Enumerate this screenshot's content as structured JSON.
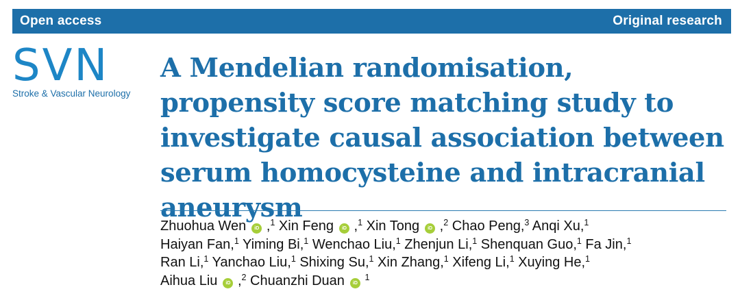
{
  "header": {
    "left_label": "Open access",
    "right_label": "Original research"
  },
  "journal": {
    "logo_text": "SVN",
    "name": "Stroke & Vascular Neurology"
  },
  "article": {
    "title": "A Mendelian randomisation, propensity score matching study to investigate causal association between serum homocysteine and intracranial aneurysm"
  },
  "orcid_icon_text": "iD",
  "author_lines": [
    [
      {
        "name": "Zhuohua Wen",
        "orcid": true,
        "aff": "1",
        "sep": ", "
      },
      {
        "name": "Xin Feng",
        "orcid": true,
        "aff": "1",
        "sep": ", "
      },
      {
        "name": "Xin Tong",
        "orcid": true,
        "aff": "2",
        "sep": ", "
      },
      {
        "name": "Chao Peng",
        "orcid": false,
        "aff": "3",
        "sep": ", "
      },
      {
        "name": "Anqi Xu",
        "orcid": false,
        "aff": "1",
        "sep": ", "
      }
    ],
    [
      {
        "name": "Haiyan Fan",
        "orcid": false,
        "aff": "1",
        "sep": ", "
      },
      {
        "name": "Yiming Bi",
        "orcid": false,
        "aff": "1",
        "sep": ", "
      },
      {
        "name": "Wenchao Liu",
        "orcid": false,
        "aff": "1",
        "sep": ", "
      },
      {
        "name": "Zhenjun Li",
        "orcid": false,
        "aff": "1",
        "sep": ", "
      },
      {
        "name": "Shenquan Guo",
        "orcid": false,
        "aff": "1",
        "sep": ", "
      },
      {
        "name": "Fa Jin",
        "orcid": false,
        "aff": "1",
        "sep": ", "
      }
    ],
    [
      {
        "name": "Ran Li",
        "orcid": false,
        "aff": "1",
        "sep": ", "
      },
      {
        "name": "Yanchao Liu",
        "orcid": false,
        "aff": "1",
        "sep": ", "
      },
      {
        "name": "Shixing Su",
        "orcid": false,
        "aff": "1",
        "sep": ", "
      },
      {
        "name": "Xin Zhang",
        "orcid": false,
        "aff": "1",
        "sep": ", "
      },
      {
        "name": "Xifeng Li",
        "orcid": false,
        "aff": "1",
        "sep": ", "
      },
      {
        "name": "Xuying He",
        "orcid": false,
        "aff": "1",
        "sep": ", "
      }
    ],
    [
      {
        "name": "Aihua Liu",
        "orcid": true,
        "aff": "2",
        "sep": ", "
      },
      {
        "name": "Chuanzhi Duan",
        "orcid": true,
        "aff": "1",
        "sep": ""
      }
    ]
  ],
  "colors": {
    "brand_blue": "#1d6fa9",
    "logo_blue": "#1d86c6",
    "orcid_green": "#a6ce39"
  }
}
